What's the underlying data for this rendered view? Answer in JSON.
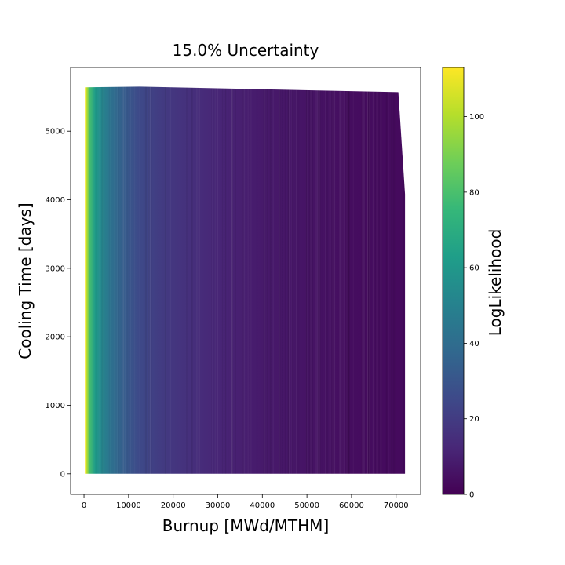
{
  "chart_data": {
    "type": "heatmap",
    "title": "15.0% Uncertainty",
    "xlabel": "Burnup [MWd/MTHM]",
    "ylabel": "Cooling Time [days]",
    "xlim": [
      -3000,
      75500
    ],
    "ylim": [
      -300,
      5930
    ],
    "xticks": [
      0,
      10000,
      20000,
      30000,
      40000,
      50000,
      60000,
      70000
    ],
    "yticks": [
      0,
      1000,
      2000,
      3000,
      4000,
      5000
    ],
    "colorbar": {
      "label": "LogLikelihood",
      "min": 0,
      "max": 113,
      "ticks": [
        0,
        20,
        40,
        60,
        80,
        100
      ],
      "colormap": "viridis"
    },
    "region": {
      "outline": [
        [
          200,
          0
        ],
        [
          200,
          5640
        ],
        [
          12500,
          5650
        ],
        [
          70500,
          5570
        ],
        [
          72000,
          4080
        ],
        [
          72000,
          0
        ]
      ]
    },
    "loglikelihood_vs_burnup": [
      {
        "burnup": 200,
        "value": 113
      },
      {
        "burnup": 600,
        "value": 102
      },
      {
        "burnup": 1200,
        "value": 80
      },
      {
        "burnup": 2500,
        "value": 62
      },
      {
        "burnup": 4000,
        "value": 52
      },
      {
        "burnup": 6000,
        "value": 42
      },
      {
        "burnup": 9000,
        "value": 33
      },
      {
        "burnup": 12000,
        "value": 26
      },
      {
        "burnup": 16000,
        "value": 21
      },
      {
        "burnup": 20000,
        "value": 18
      },
      {
        "burnup": 26000,
        "value": 14
      },
      {
        "burnup": 32000,
        "value": 11
      },
      {
        "burnup": 40000,
        "value": 8
      },
      {
        "burnup": 50000,
        "value": 6
      },
      {
        "burnup": 60000,
        "value": 4
      },
      {
        "burnup": 72000,
        "value": 3
      }
    ],
    "colors": {
      "viridis": [
        "#440154",
        "#482878",
        "#3e4989",
        "#31688e",
        "#26828e",
        "#1f9e89",
        "#35b779",
        "#6ece58",
        "#b5de2b",
        "#fde725"
      ]
    }
  }
}
